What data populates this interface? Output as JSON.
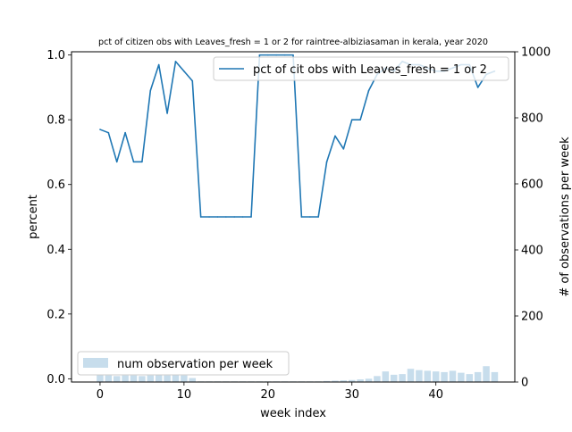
{
  "chart_data": {
    "type": "line",
    "title": "pct of citizen obs with Leaves_fresh = 1 or 2 for raintree-albiziasaman in kerala, year 2020",
    "xlabel": "week index",
    "ylabel": "percent",
    "y2label": "# of observations per week",
    "xlim": [
      -3.4,
      49.4
    ],
    "ylim": [
      -0.01,
      1.01
    ],
    "y2lim": [
      0,
      1000
    ],
    "xticks": [
      0,
      10,
      20,
      30,
      40
    ],
    "yticks": [
      "0.0",
      "0.2",
      "0.4",
      "0.6",
      "0.8",
      "1.0"
    ],
    "y2ticks": [
      "0",
      "200",
      "400",
      "600",
      "800",
      "1000"
    ],
    "grid": false,
    "series": [
      {
        "name": "pct of cit obs with Leaves_fresh = 1 or 2",
        "axis": "left",
        "color": "#1f77b4",
        "x": [
          0,
          1,
          2,
          3,
          4,
          5,
          6,
          7,
          8,
          9,
          10,
          11,
          12,
          13,
          14,
          15,
          16,
          17,
          18,
          19,
          20,
          21,
          22,
          23,
          24,
          25,
          26,
          27,
          28,
          29,
          30,
          31,
          32,
          33,
          34,
          35,
          36,
          37,
          38,
          39,
          40,
          41,
          42,
          43,
          44,
          45,
          46,
          47
        ],
        "values": [
          0.77,
          0.76,
          0.67,
          0.76,
          0.67,
          0.67,
          0.89,
          0.97,
          0.82,
          0.98,
          0.95,
          0.92,
          0.5,
          0.5,
          0.5,
          0.5,
          0.5,
          0.5,
          0.5,
          1.0,
          1.0,
          1.0,
          1.0,
          1.0,
          0.5,
          0.5,
          0.5,
          0.67,
          0.75,
          0.71,
          0.8,
          0.8,
          0.89,
          0.94,
          0.96,
          0.95,
          0.98,
          0.97,
          0.97,
          0.96,
          0.95,
          0.95,
          0.96,
          0.97,
          0.97,
          0.9,
          0.94,
          0.95
        ]
      },
      {
        "name": "num observation per week",
        "axis": "right",
        "type": "bar",
        "color": "#1f77b4",
        "x": [
          0,
          1,
          2,
          3,
          4,
          5,
          6,
          7,
          8,
          9,
          10,
          11,
          12,
          13,
          14,
          15,
          16,
          17,
          18,
          19,
          20,
          21,
          22,
          23,
          24,
          25,
          26,
          27,
          28,
          29,
          30,
          31,
          32,
          33,
          34,
          35,
          36,
          37,
          38,
          39,
          40,
          41,
          42,
          43,
          44,
          45,
          46,
          47
        ],
        "values": [
          22,
          20,
          18,
          20,
          20,
          18,
          20,
          22,
          20,
          22,
          20,
          12,
          2,
          2,
          2,
          2,
          2,
          2,
          2,
          2,
          2,
          2,
          2,
          2,
          2,
          2,
          2,
          3,
          4,
          5,
          6,
          8,
          10,
          18,
          32,
          22,
          24,
          40,
          36,
          34,
          32,
          30,
          34,
          28,
          24,
          30,
          48,
          30
        ]
      }
    ],
    "legends": {
      "line": {
        "label": "pct of cit obs with Leaves_fresh = 1 or 2",
        "placement": "upper right"
      },
      "bar": {
        "label": "num observation per week",
        "placement": "lower left"
      }
    }
  }
}
